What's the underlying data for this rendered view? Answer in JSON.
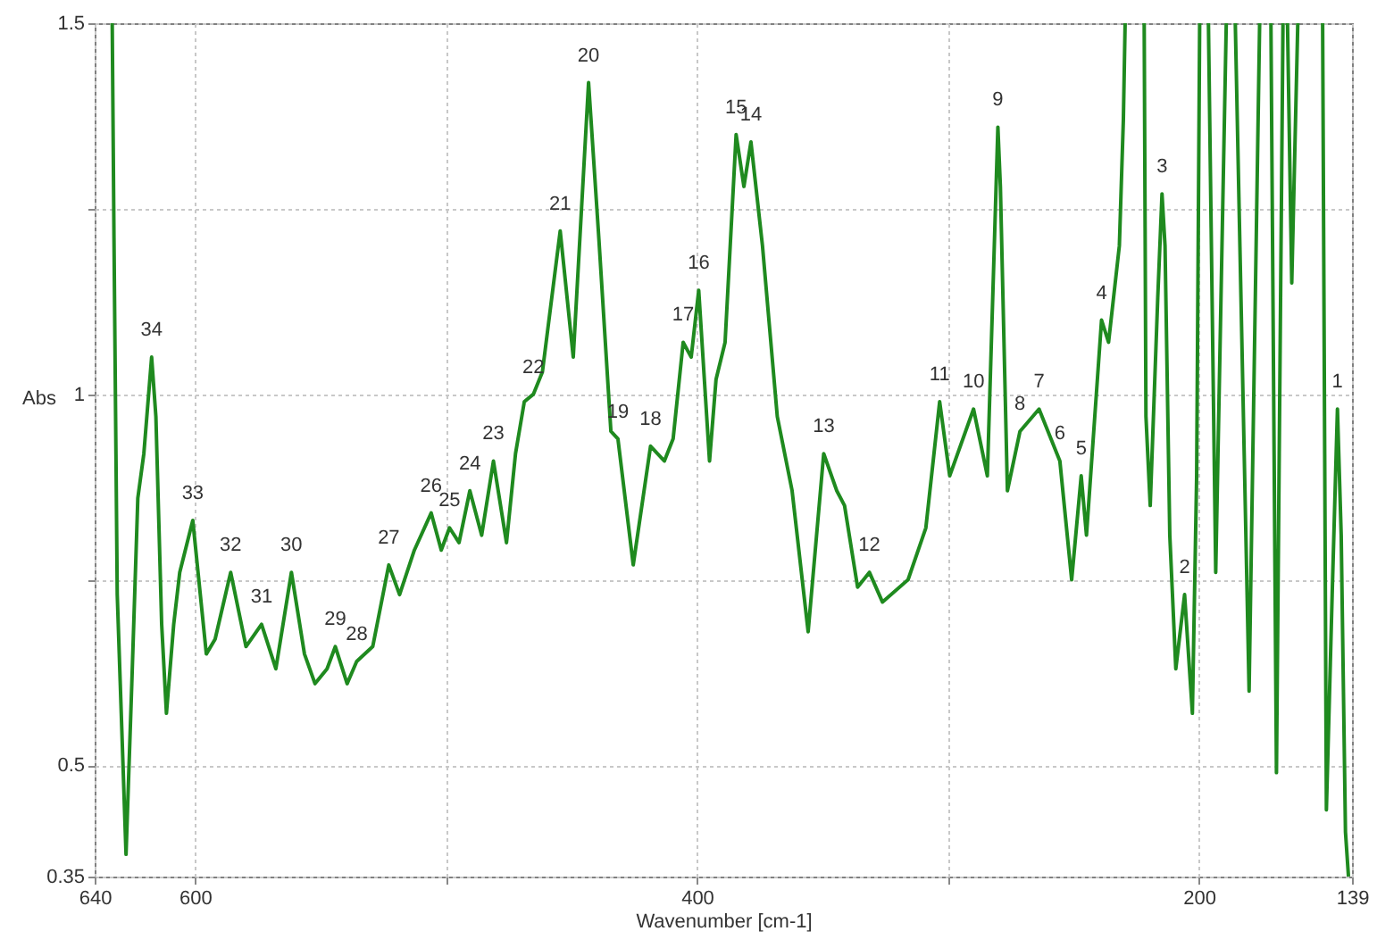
{
  "chart_data": {
    "type": "line",
    "xlabel": "Wavenumber [cm-1]",
    "ylabel": "Abs",
    "color": "#1f8a1f",
    "grid": true,
    "xlim": [
      640,
      139
    ],
    "xticks": [
      640,
      600,
      {
        "value": 500,
        "label": null
      },
      400,
      {
        "value": 300,
        "label": null
      },
      200,
      139
    ],
    "ylim": [
      0.35,
      1.5
    ],
    "yticks": [
      0.35,
      0.5,
      {
        "value": 0.75,
        "label": null
      },
      1,
      {
        "value": 1.25,
        "label": null
      },
      1.5
    ],
    "x": [
      633,
      632.3,
      631,
      627.5,
      625.2,
      622.8,
      620.4,
      617.3,
      615.6,
      613.3,
      611.4,
      608.5,
      606.1,
      600.9,
      597.9,
      595.5,
      592,
      585.8,
      579.7,
      573.5,
      567.8,
      561.6,
      556.4,
      552.2,
      547.4,
      544.1,
      539.4,
      535.6,
      529.2,
      522.8,
      518.5,
      512.6,
      505.9,
      501.9,
      498.6,
      494.8,
      490.5,
      485.8,
      481.1,
      475.9,
      472.3,
      468.8,
      465.2,
      461.6,
      454.5,
      449.3,
      443.2,
      439.1,
      434.3,
      431.5,
      425.4,
      418.5,
      413,
      409.5,
      405.5,
      402.3,
      399.3,
      395,
      392.4,
      388.8,
      384.4,
      381.3,
      378.5,
      373.9,
      368,
      362.1,
      355.7,
      349.5,
      344.3,
      341.2,
      336,
      331.3,
      326.1,
      315.9,
      308.8,
      303.3,
      299.3,
      289.8,
      284.3,
      280.1,
      279.1,
      276.3,
      271.3,
      263.7,
      255.4,
      250.7,
      246.9,
      244.8,
      238.8,
      236,
      231.7,
      230.1,
      229.4,
      225,
      221.8,
      221.1,
      219.4,
      216.4,
      214.7,
      213.5,
      211.6,
      209.2,
      205.7,
      202.6,
      200.9,
      199.7,
      198,
      196.2,
      193.3,
      189.1,
      187,
      185.5,
      180,
      175.8,
      173,
      171.3,
      169.1,
      166.5,
      165.5,
      164.7,
      163,
      160.6,
      155,
      150.7,
      149.2,
      146.9,
      144.8,
      143.3,
      141.6,
      140.4
    ],
    "values": [
      1.5,
      1.21,
      0.73,
      0.38,
      0.61,
      0.86,
      0.92,
      1.05,
      0.97,
      0.69,
      0.57,
      0.69,
      0.76,
      0.83,
      0.73,
      0.65,
      0.67,
      0.76,
      0.66,
      0.69,
      0.63,
      0.76,
      0.65,
      0.61,
      0.63,
      0.66,
      0.61,
      0.64,
      0.66,
      0.77,
      0.73,
      0.79,
      0.84,
      0.79,
      0.82,
      0.8,
      0.87,
      0.81,
      0.91,
      0.8,
      0.92,
      0.99,
      1.0,
      1.03,
      1.22,
      1.05,
      1.42,
      1.21,
      0.95,
      0.94,
      0.77,
      0.93,
      0.91,
      0.94,
      1.07,
      1.05,
      1.14,
      0.91,
      1.02,
      1.07,
      1.35,
      1.28,
      1.34,
      1.2,
      0.97,
      0.87,
      0.68,
      0.92,
      0.87,
      0.85,
      0.74,
      0.76,
      0.72,
      0.75,
      0.82,
      0.99,
      0.89,
      0.98,
      0.89,
      1.36,
      1.28,
      0.87,
      0.95,
      0.98,
      0.91,
      0.75,
      0.89,
      0.81,
      1.1,
      1.07,
      1.2,
      1.37,
      1.5,
      null,
      1.5,
      0.97,
      0.85,
      1.13,
      1.27,
      1.2,
      0.81,
      0.63,
      0.73,
      0.57,
      0.89,
      1.5,
      null,
      1.5,
      0.76,
      1.5,
      null,
      1.5,
      0.6,
      1.5,
      null,
      1.5,
      0.49,
      1.5,
      null,
      1.5,
      1.15,
      1.5,
      null,
      1.5,
      0.44,
      0.73,
      0.98,
      0.81,
      0.41,
      0.35
    ],
    "annotations": [
      {
        "text": "1",
        "x": 144.8,
        "y": 0.98
      },
      {
        "text": "2",
        "x": 205.7,
        "y": 0.73
      },
      {
        "text": "3",
        "x": 214.7,
        "y": 1.27
      },
      {
        "text": "4",
        "x": 238.8,
        "y": 1.1
      },
      {
        "text": "5",
        "x": 246.9,
        "y": 0.89
      },
      {
        "text": "6",
        "x": 255.4,
        "y": 0.91
      },
      {
        "text": "7",
        "x": 263.7,
        "y": 0.98
      },
      {
        "text": "8",
        "x": 271.3,
        "y": 0.95
      },
      {
        "text": "9",
        "x": 280.1,
        "y": 1.36
      },
      {
        "text": "10",
        "x": 289.8,
        "y": 0.98
      },
      {
        "text": "11",
        "x": 303.3,
        "y": 0.99
      },
      {
        "text": "12",
        "x": 331.3,
        "y": 0.76
      },
      {
        "text": "13",
        "x": 349.5,
        "y": 0.92
      },
      {
        "text": "14",
        "x": 378.5,
        "y": 1.34
      },
      {
        "text": "15",
        "x": 384.4,
        "y": 1.35
      },
      {
        "text": "16",
        "x": 399.3,
        "y": 1.14
      },
      {
        "text": "17",
        "x": 405.5,
        "y": 1.07
      },
      {
        "text": "18",
        "x": 418.5,
        "y": 0.93
      },
      {
        "text": "19",
        "x": 431.5,
        "y": 0.94
      },
      {
        "text": "20",
        "x": 443.2,
        "y": 1.42
      },
      {
        "text": "21",
        "x": 454.5,
        "y": 1.22
      },
      {
        "text": "22",
        "x": 465.2,
        "y": 1.0
      },
      {
        "text": "23",
        "x": 481.1,
        "y": 0.91
      },
      {
        "text": "24",
        "x": 490.5,
        "y": 0.87
      },
      {
        "text": "25",
        "x": 498.6,
        "y": 0.82
      },
      {
        "text": "26",
        "x": 505.9,
        "y": 0.84
      },
      {
        "text": "27",
        "x": 522.8,
        "y": 0.77
      },
      {
        "text": "28",
        "x": 535.6,
        "y": 0.64
      },
      {
        "text": "29",
        "x": 544.1,
        "y": 0.66
      },
      {
        "text": "30",
        "x": 561.6,
        "y": 0.76
      },
      {
        "text": "31",
        "x": 573.5,
        "y": 0.69
      },
      {
        "text": "32",
        "x": 585.8,
        "y": 0.76
      },
      {
        "text": "33",
        "x": 600.9,
        "y": 0.83
      },
      {
        "text": "34",
        "x": 617.3,
        "y": 1.05
      }
    ]
  }
}
